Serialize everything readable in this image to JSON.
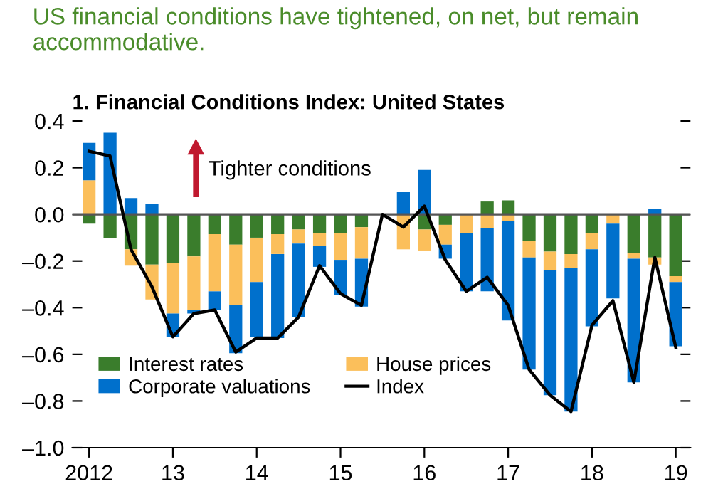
{
  "chart_data": {
    "type": "bar",
    "stacked": true,
    "title": "US financial conditions have tightened, on net, but remain accommodative.",
    "subtitle": "1. Financial Conditions Index: United States",
    "categories": [
      "2012",
      null,
      null,
      null,
      "13",
      null,
      null,
      null,
      "14",
      null,
      null,
      null,
      "15",
      null,
      null,
      null,
      "16",
      null,
      null,
      null,
      "17",
      null,
      null,
      null,
      "18",
      null,
      null,
      null,
      "19"
    ],
    "series": [
      {
        "name": "Interest rates",
        "color": "#3a7d2c",
        "values": [
          -0.04,
          -0.1,
          -0.15,
          -0.215,
          -0.21,
          -0.18,
          -0.085,
          -0.13,
          -0.1,
          -0.085,
          -0.065,
          -0.08,
          -0.08,
          -0.055,
          0,
          0,
          -0.065,
          -0.045,
          null,
          0.055,
          0.06,
          -0.115,
          -0.16,
          -0.17,
          -0.08,
          null,
          -0.165,
          -0.185,
          -0.265
        ]
      },
      {
        "name": "House prices",
        "color": "#fbbf5b",
        "values": [
          0.146,
          0,
          -0.07,
          -0.15,
          -0.215,
          -0.23,
          -0.245,
          -0.26,
          -0.19,
          -0.085,
          -0.06,
          -0.055,
          -0.115,
          -0.135,
          0,
          -0.15,
          -0.09,
          -0.085,
          -0.08,
          -0.06,
          -0.03,
          -0.07,
          -0.08,
          -0.06,
          -0.07,
          -0.04,
          -0.025,
          -0.03,
          -0.025
        ]
      },
      {
        "name": "Corporate valuations",
        "color": "#0070cc",
        "values": [
          0.16,
          0.35,
          0.07,
          0.045,
          -0.1,
          -0.015,
          -0.08,
          -0.205,
          -0.235,
          -0.36,
          -0.315,
          -0.09,
          -0.15,
          -0.205,
          0,
          0.095,
          0.19,
          -0.06,
          -0.25,
          -0.27,
          -0.425,
          -0.48,
          -0.535,
          -0.615,
          -0.33,
          -0.32,
          -0.53,
          0.025,
          -0.275
        ]
      },
      {
        "name": "Index",
        "type": "line",
        "color": "#000000",
        "values": [
          0.27,
          0.25,
          -0.15,
          -0.31,
          -0.525,
          -0.425,
          -0.41,
          -0.59,
          -0.53,
          -0.53,
          -0.44,
          -0.22,
          -0.34,
          -0.39,
          0,
          -0.055,
          0.035,
          -0.195,
          -0.33,
          -0.27,
          -0.39,
          -0.665,
          -0.775,
          -0.845,
          -0.475,
          -0.37,
          -0.72,
          -0.185,
          -0.57
        ]
      }
    ],
    "ylim": [
      -1.0,
      0.4
    ],
    "yticks": [
      {
        "value": 0.4,
        "label": "0.4"
      },
      {
        "value": 0.2,
        "label": "0.2"
      },
      {
        "value": 0,
        "label": "0.0"
      },
      {
        "value": -0.2,
        "label": "–0.2"
      },
      {
        "value": -0.4,
        "label": "–0.4"
      },
      {
        "value": -0.6,
        "label": "–0.6"
      },
      {
        "value": -0.8,
        "label": "–0.8"
      },
      {
        "value": -1.0,
        "label": "–1.0"
      }
    ],
    "ref_lines": [
      {
        "axis": "y",
        "value": 0,
        "label": null,
        "color": "#555555"
      }
    ],
    "annotations": [
      "Tighter conditions"
    ],
    "legend": "bottom",
    "grid": false,
    "marker": "none",
    "line_style": "solid"
  }
}
